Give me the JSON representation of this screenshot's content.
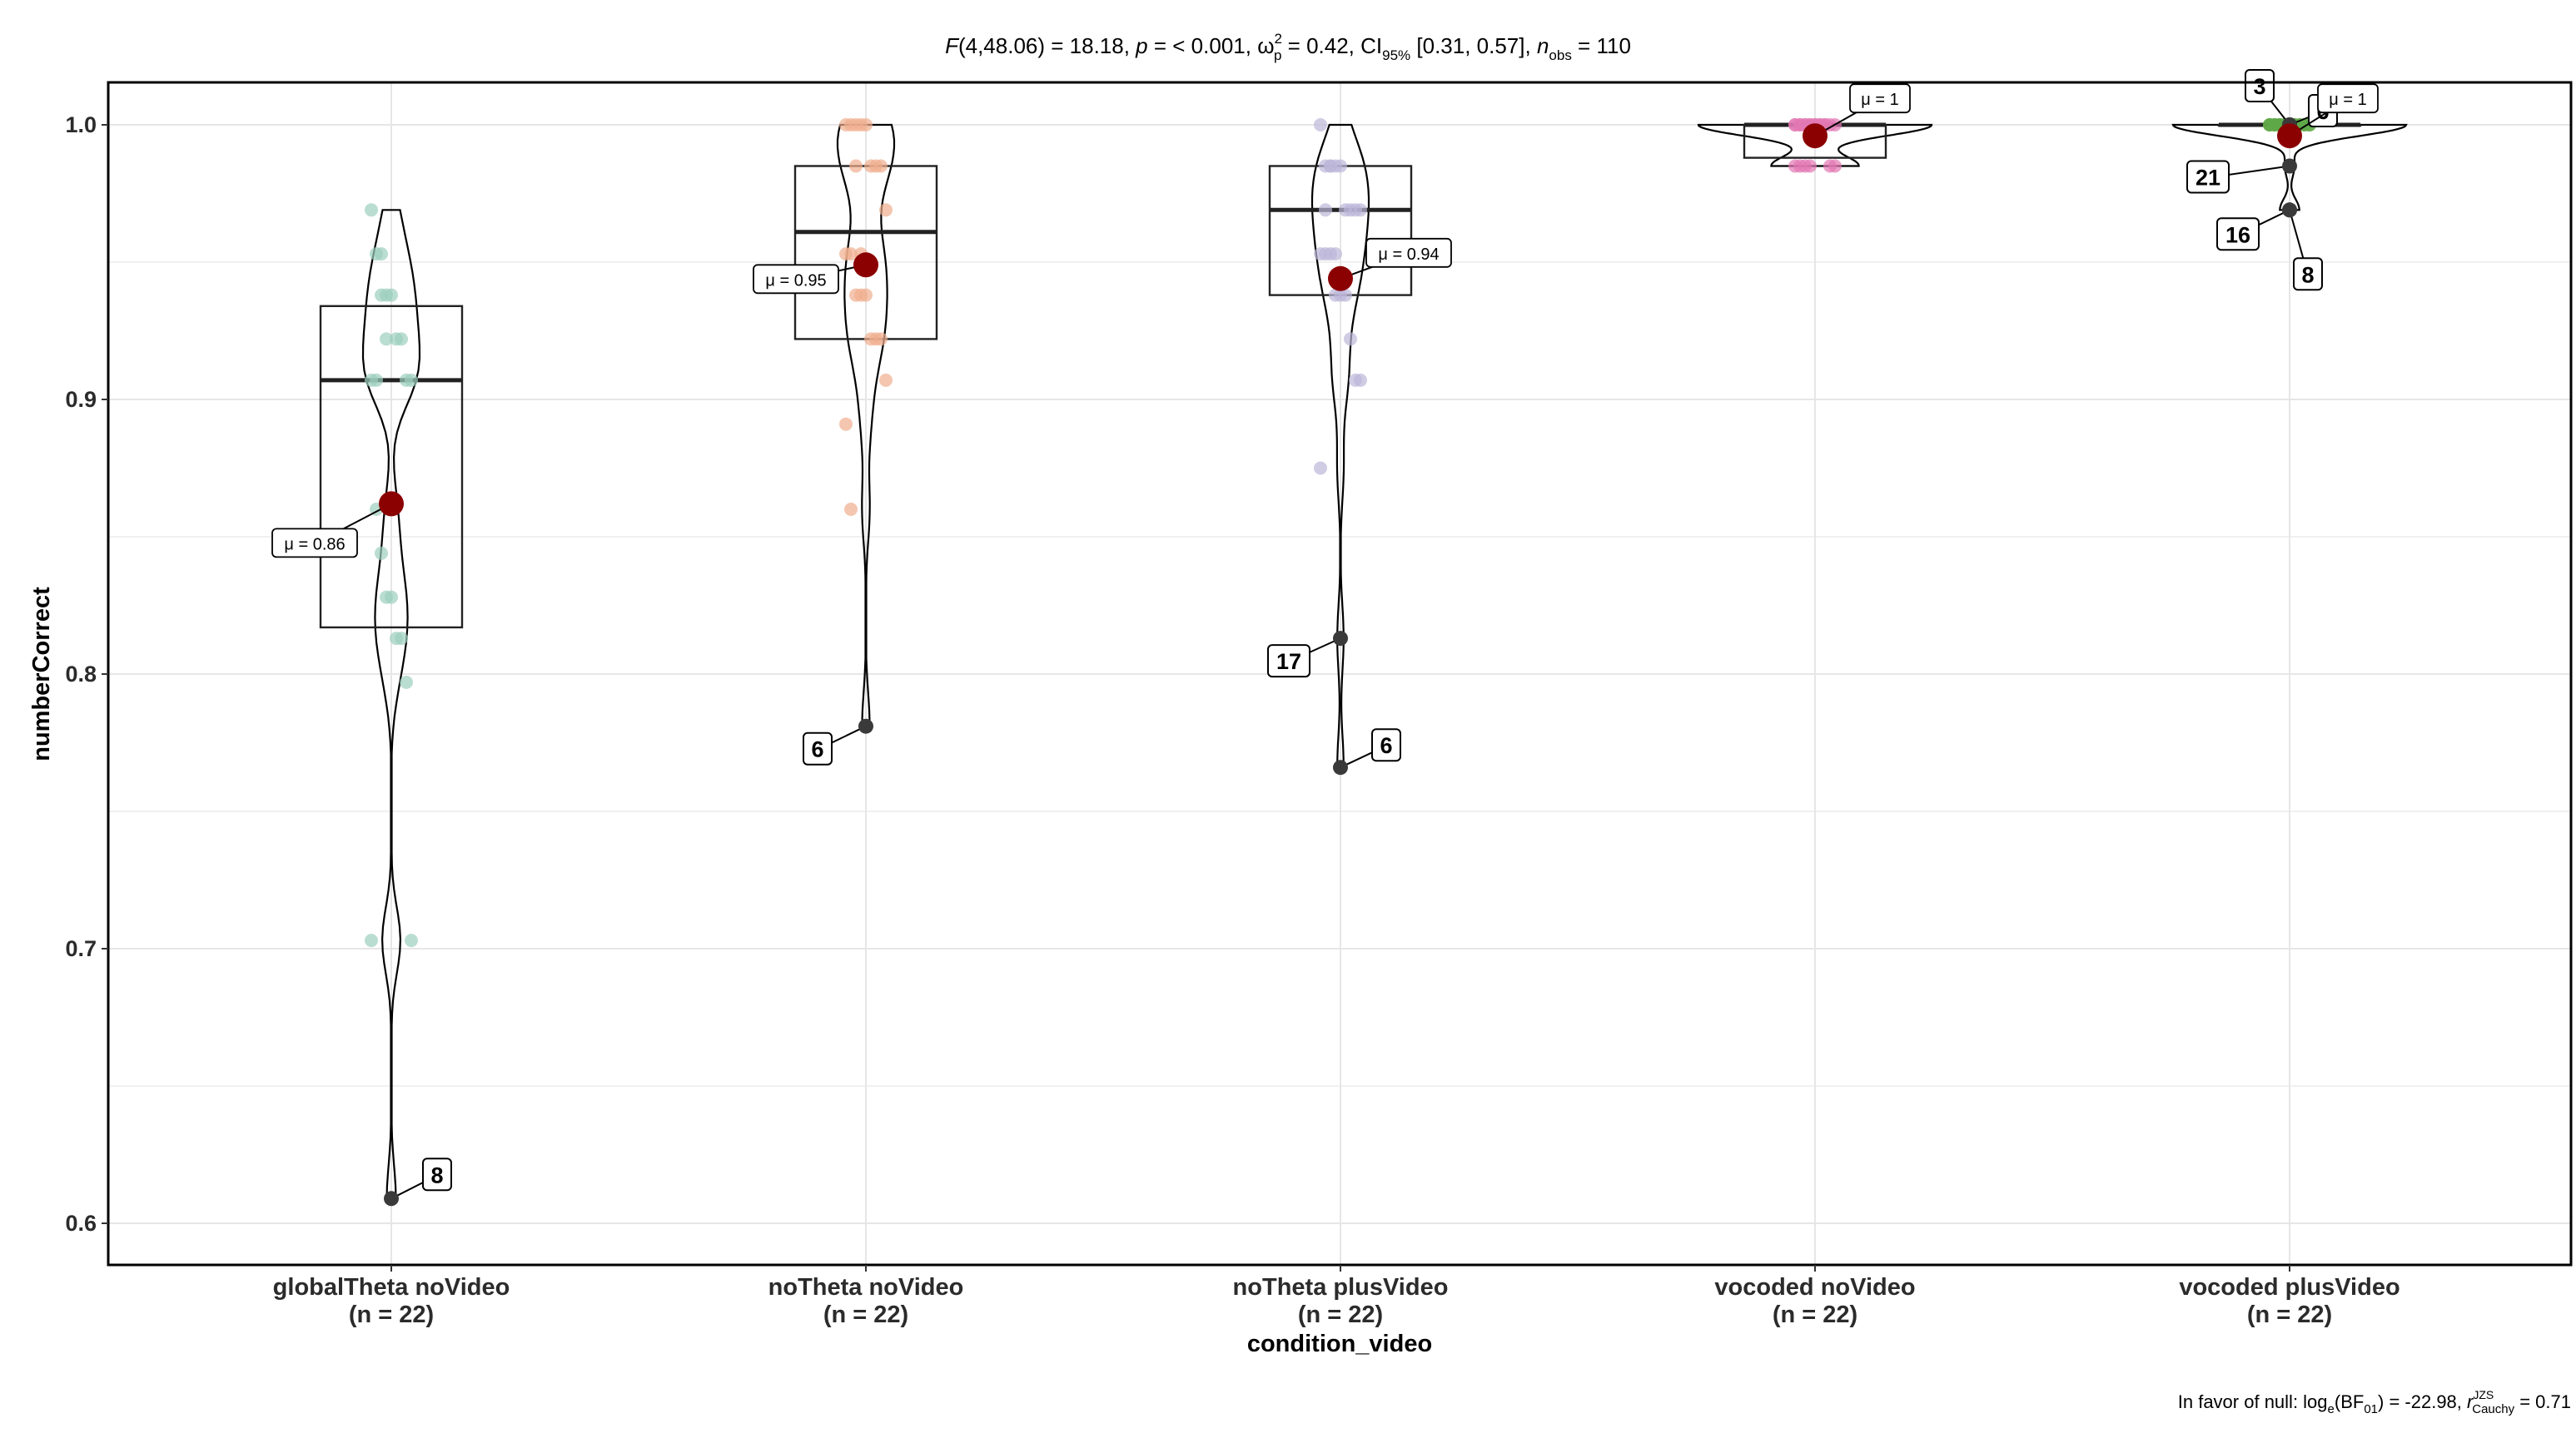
{
  "subtitle_stats": {
    "F_label": "F",
    "F_args": "(4,48.06) = 18.18, ",
    "p_label": "p",
    "p_text": " = < 0.001, ω",
    "omega_sub": "p",
    "omega_sup": "2",
    "omega_text": " = 0.42, CI",
    "ci_sub": "95%",
    "ci_text": " [0.31, 0.57], ",
    "n_label": "n",
    "n_sub": "obs",
    "n_text": " = 110"
  },
  "footer_stats": {
    "prefix": "In favor of null: log",
    "log_sub": "e",
    "bf_open": "(BF",
    "bf_sub": "01",
    "bf_close": ") = -22.98, ",
    "r_label": "r",
    "r_sup": "JZS",
    "r_sub": "Cauchy",
    "r_value": " = 0.71"
  },
  "colors": {
    "globalTheta noVideo": "#9ccfbd",
    "noTheta noVideo": "#efae8f",
    "noTheta plusVideo": "#bcb6d8",
    "vocoded noVideo": "#e277b4",
    "vocoded plusVideo": "#5fa848",
    "mean": "#8b0000",
    "outlier": "#3a3a3a",
    "grid": "#e6e6e6"
  },
  "chart_data": {
    "type": "box-violin",
    "xlabel": "condition_video",
    "ylabel": "numberCorrect",
    "ylim": [
      0.59,
      1.02
    ],
    "yticks": [
      "0.6",
      "0.7",
      "0.8",
      "0.9",
      "1.0"
    ],
    "grid": true,
    "legend": "none",
    "categories": [
      {
        "name": "globalTheta noVideo",
        "n_label": "(n = 22)",
        "box": {
          "q1": 0.817,
          "median": 0.907,
          "q3": 0.934,
          "whisker_low": 0.703,
          "whisker_high": 0.969
        },
        "mean": 0.862,
        "mean_label": "μ = 0.86",
        "outliers": [
          {
            "y": 0.609,
            "label": "8"
          }
        ],
        "points": [
          0.969,
          0.953,
          0.953,
          0.938,
          0.938,
          0.922,
          0.922,
          0.907,
          0.907,
          0.907,
          0.86,
          0.844,
          0.828,
          0.828,
          0.813,
          0.813,
          0.797,
          0.703,
          0.703,
          0.907,
          0.938,
          0.922
        ]
      },
      {
        "name": "noTheta noVideo",
        "n_label": "(n = 22)",
        "box": {
          "q1": 0.922,
          "median": 0.961,
          "q3": 0.985,
          "whisker_low": 0.86,
          "whisker_high": 1.0
        },
        "mean": 0.949,
        "mean_label": "μ = 0.95",
        "outliers": [
          {
            "y": 0.781,
            "label": "6"
          }
        ],
        "points": [
          1.0,
          1.0,
          1.0,
          1.0,
          1.0,
          0.985,
          0.985,
          0.985,
          0.969,
          0.953,
          0.953,
          0.938,
          0.938,
          0.938,
          0.922,
          0.922,
          0.922,
          0.907,
          0.891,
          0.86,
          0.985,
          0.953
        ]
      },
      {
        "name": "noTheta plusVideo",
        "n_label": "(n = 22)",
        "box": {
          "q1": 0.938,
          "median": 0.969,
          "q3": 0.985,
          "whisker_low": 0.875,
          "whisker_high": 1.0
        },
        "mean": 0.944,
        "mean_label": "μ = 0.94",
        "outliers": [
          {
            "y": 0.813,
            "label": "17"
          },
          {
            "y": 0.766,
            "label": "6"
          }
        ],
        "points": [
          1.0,
          0.985,
          0.985,
          0.985,
          0.985,
          0.969,
          0.969,
          0.969,
          0.969,
          0.953,
          0.953,
          0.953,
          0.938,
          0.938,
          0.938,
          0.922,
          0.907,
          0.907,
          0.875,
          0.969,
          0.985,
          0.953
        ]
      },
      {
        "name": "vocoded noVideo",
        "n_label": "(n = 22)",
        "box": {
          "q1": 0.988,
          "median": 1.0,
          "q3": 1.0,
          "whisker_low": 0.985,
          "whisker_high": 1.0
        },
        "mean": 0.996,
        "mean_label": "μ = 1",
        "outliers": [],
        "points": [
          1.0,
          1.0,
          1.0,
          1.0,
          1.0,
          1.0,
          1.0,
          1.0,
          1.0,
          1.0,
          1.0,
          1.0,
          1.0,
          1.0,
          1.0,
          1.0,
          0.985,
          0.985,
          0.985,
          0.985,
          0.985,
          0.985
        ]
      },
      {
        "name": "vocoded plusVideo",
        "n_label": "(n = 22)",
        "box": {
          "q1": 1.0,
          "median": 1.0,
          "q3": 1.0,
          "whisker_low": 1.0,
          "whisker_high": 1.0
        },
        "mean": 0.996,
        "mean_label": "μ = 1",
        "outliers": [
          {
            "y": 1.0,
            "label": "3"
          },
          {
            "y": 1.0,
            "label": "6"
          },
          {
            "y": 0.985,
            "label": "21"
          },
          {
            "y": 0.969,
            "label": "16"
          },
          {
            "y": 0.969,
            "label": "8"
          }
        ],
        "points": [
          1.0,
          1.0,
          1.0,
          1.0,
          1.0,
          1.0,
          1.0,
          1.0,
          1.0,
          1.0,
          1.0,
          1.0,
          1.0,
          1.0,
          1.0,
          1.0,
          1.0,
          1.0,
          1.0,
          1.0,
          1.0,
          1.0
        ]
      }
    ]
  }
}
